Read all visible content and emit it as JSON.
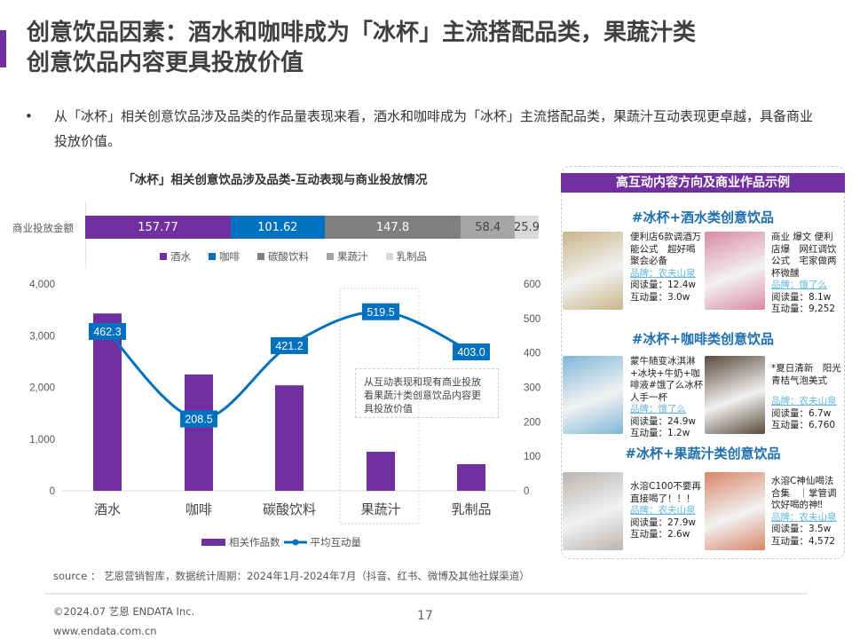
{
  "page": {
    "title": "创意饮品因素：酒水和咖啡成为「冰杯」主流搭配品类，果蔬汁类创意饮品内容更具投放价值",
    "bullet": "从「冰杯」相关创意饮品涉及品类的作品量表现来看，酒水和咖啡成为「冰杯」主流搭配品类，果蔬汁互动表现更卓越，具备商业投放价值。",
    "bullet_marker": "•",
    "source": "source ： 艺恩营销智库，数据统计周期：2024年1月-2024年7月（抖音、红书、微博及其他社媒渠道）",
    "copyright": "©2024.07  艺恩 ENDATA Inc.",
    "website": "www.endata.com.cn",
    "page_number": "17"
  },
  "colors": {
    "purple": "#7030a0",
    "blue": "#0070c0",
    "dark_gray": "#7f7f7f",
    "mid_gray": "#a6a6a6",
    "light_gray": "#d9d9d9"
  },
  "chart_data": [
    {
      "type": "bar",
      "orientation": "horizontal-stacked",
      "title": "「冰杯」相关创意饮品涉及品类-互动表现与商业投放情况",
      "categories": [
        "商业投放金额"
      ],
      "series": [
        {
          "name": "酒水",
          "values": [
            157.77
          ],
          "color": "#7030a0"
        },
        {
          "name": "咖啡",
          "values": [
            101.62
          ],
          "color": "#0070c0"
        },
        {
          "name": "碳酸饮料",
          "values": [
            147.8
          ],
          "color": "#7f7f7f"
        },
        {
          "name": "果蔬汁",
          "values": [
            58.4
          ],
          "color": "#a6a6a6"
        },
        {
          "name": "乳制品",
          "values": [
            25.9
          ],
          "color": "#d9d9d9"
        }
      ],
      "legend_position": "bottom"
    },
    {
      "type": "bar+line",
      "categories": [
        "酒水",
        "咖啡",
        "碳酸饮料",
        "果蔬汁",
        "乳制品"
      ],
      "series": [
        {
          "name": "相关作品数",
          "type": "bar",
          "axis": "left",
          "values": [
            3430,
            2250,
            2040,
            755,
            515
          ],
          "color": "#7030a0"
        },
        {
          "name": "平均互动量",
          "type": "line",
          "axis": "right",
          "values": [
            462.3,
            208.5,
            421.2,
            519.5,
            403.0
          ],
          "labels": [
            "462.3",
            "208.5",
            "421.2",
            "519.5",
            "403.0"
          ],
          "color": "#0070c0"
        }
      ],
      "left_axis": {
        "ticks": [
          "0",
          "1,000",
          "2,000",
          "3,000",
          "4,000"
        ],
        "range": [
          0,
          4000
        ]
      },
      "right_axis": {
        "ticks": [
          "0",
          "100",
          "200",
          "300",
          "400",
          "500",
          "600"
        ],
        "range": [
          0,
          600
        ]
      },
      "highlight_category": "果蔬汁",
      "annotation": "从互动表现和现有商业投放看果蔬汁类创意饮品内容更具投放价值",
      "legend_position": "bottom",
      "grid": false
    }
  ],
  "panel": {
    "header": "高互动内容方向及商业作品示例",
    "sections": [
      {
        "title": "#冰杯+酒水类创意饮品",
        "cards": [
          {
            "text": "便利店6款调酒万能公式　超好喝　聚会必备",
            "brand": "品牌：农夫山泉",
            "reads": "阅读量：12.4w",
            "interactions": "互动量：3.0w",
            "thumb": "#c9b58a"
          },
          {
            "text": "商业 爆文 便利店爆　网红调饮公式　宅家做两杯微醺",
            "brand": "品牌：饿了么",
            "reads": "阅读量：8.1w",
            "interactions": "互动量：9,252",
            "thumb": "#d98aa5"
          }
        ]
      },
      {
        "title": "#冰杯+咖啡类创意饮品",
        "cards": [
          {
            "text": "蒙牛随变冰淇淋+冰块+牛奶+咖啡液#饿了么冰杯人手一杯",
            "brand": "品牌：饿了么",
            "reads": "阅读量：24.9w",
            "interactions": "互动量：1.2w",
            "thumb": "#7fb7d8"
          },
          {
            "text": "*夏日清新　阳光青桔气泡美式",
            "brand": "品牌：农夫山泉",
            "reads": "阅读量：6.7w",
            "interactions": "互动量：6,760",
            "thumb": "#5b4a3a"
          }
        ]
      },
      {
        "title": "#冰杯+果蔬汁类创意饮品",
        "cards": [
          {
            "text": "水溶C100不要再直接喝了！！！",
            "brand": "品牌：农夫山泉",
            "reads": "阅读量：27.9w",
            "interactions": "互动量：2.6w",
            "thumb": "#b9b4b0"
          },
          {
            "text": "水溶C神仙喝法合集　｜掌管调饮好喝的神‼",
            "brand": "品牌：农夫山泉",
            "reads": "阅读量：3.5w",
            "interactions": "互动量：4,572",
            "thumb": "#d8866a"
          }
        ]
      }
    ]
  }
}
